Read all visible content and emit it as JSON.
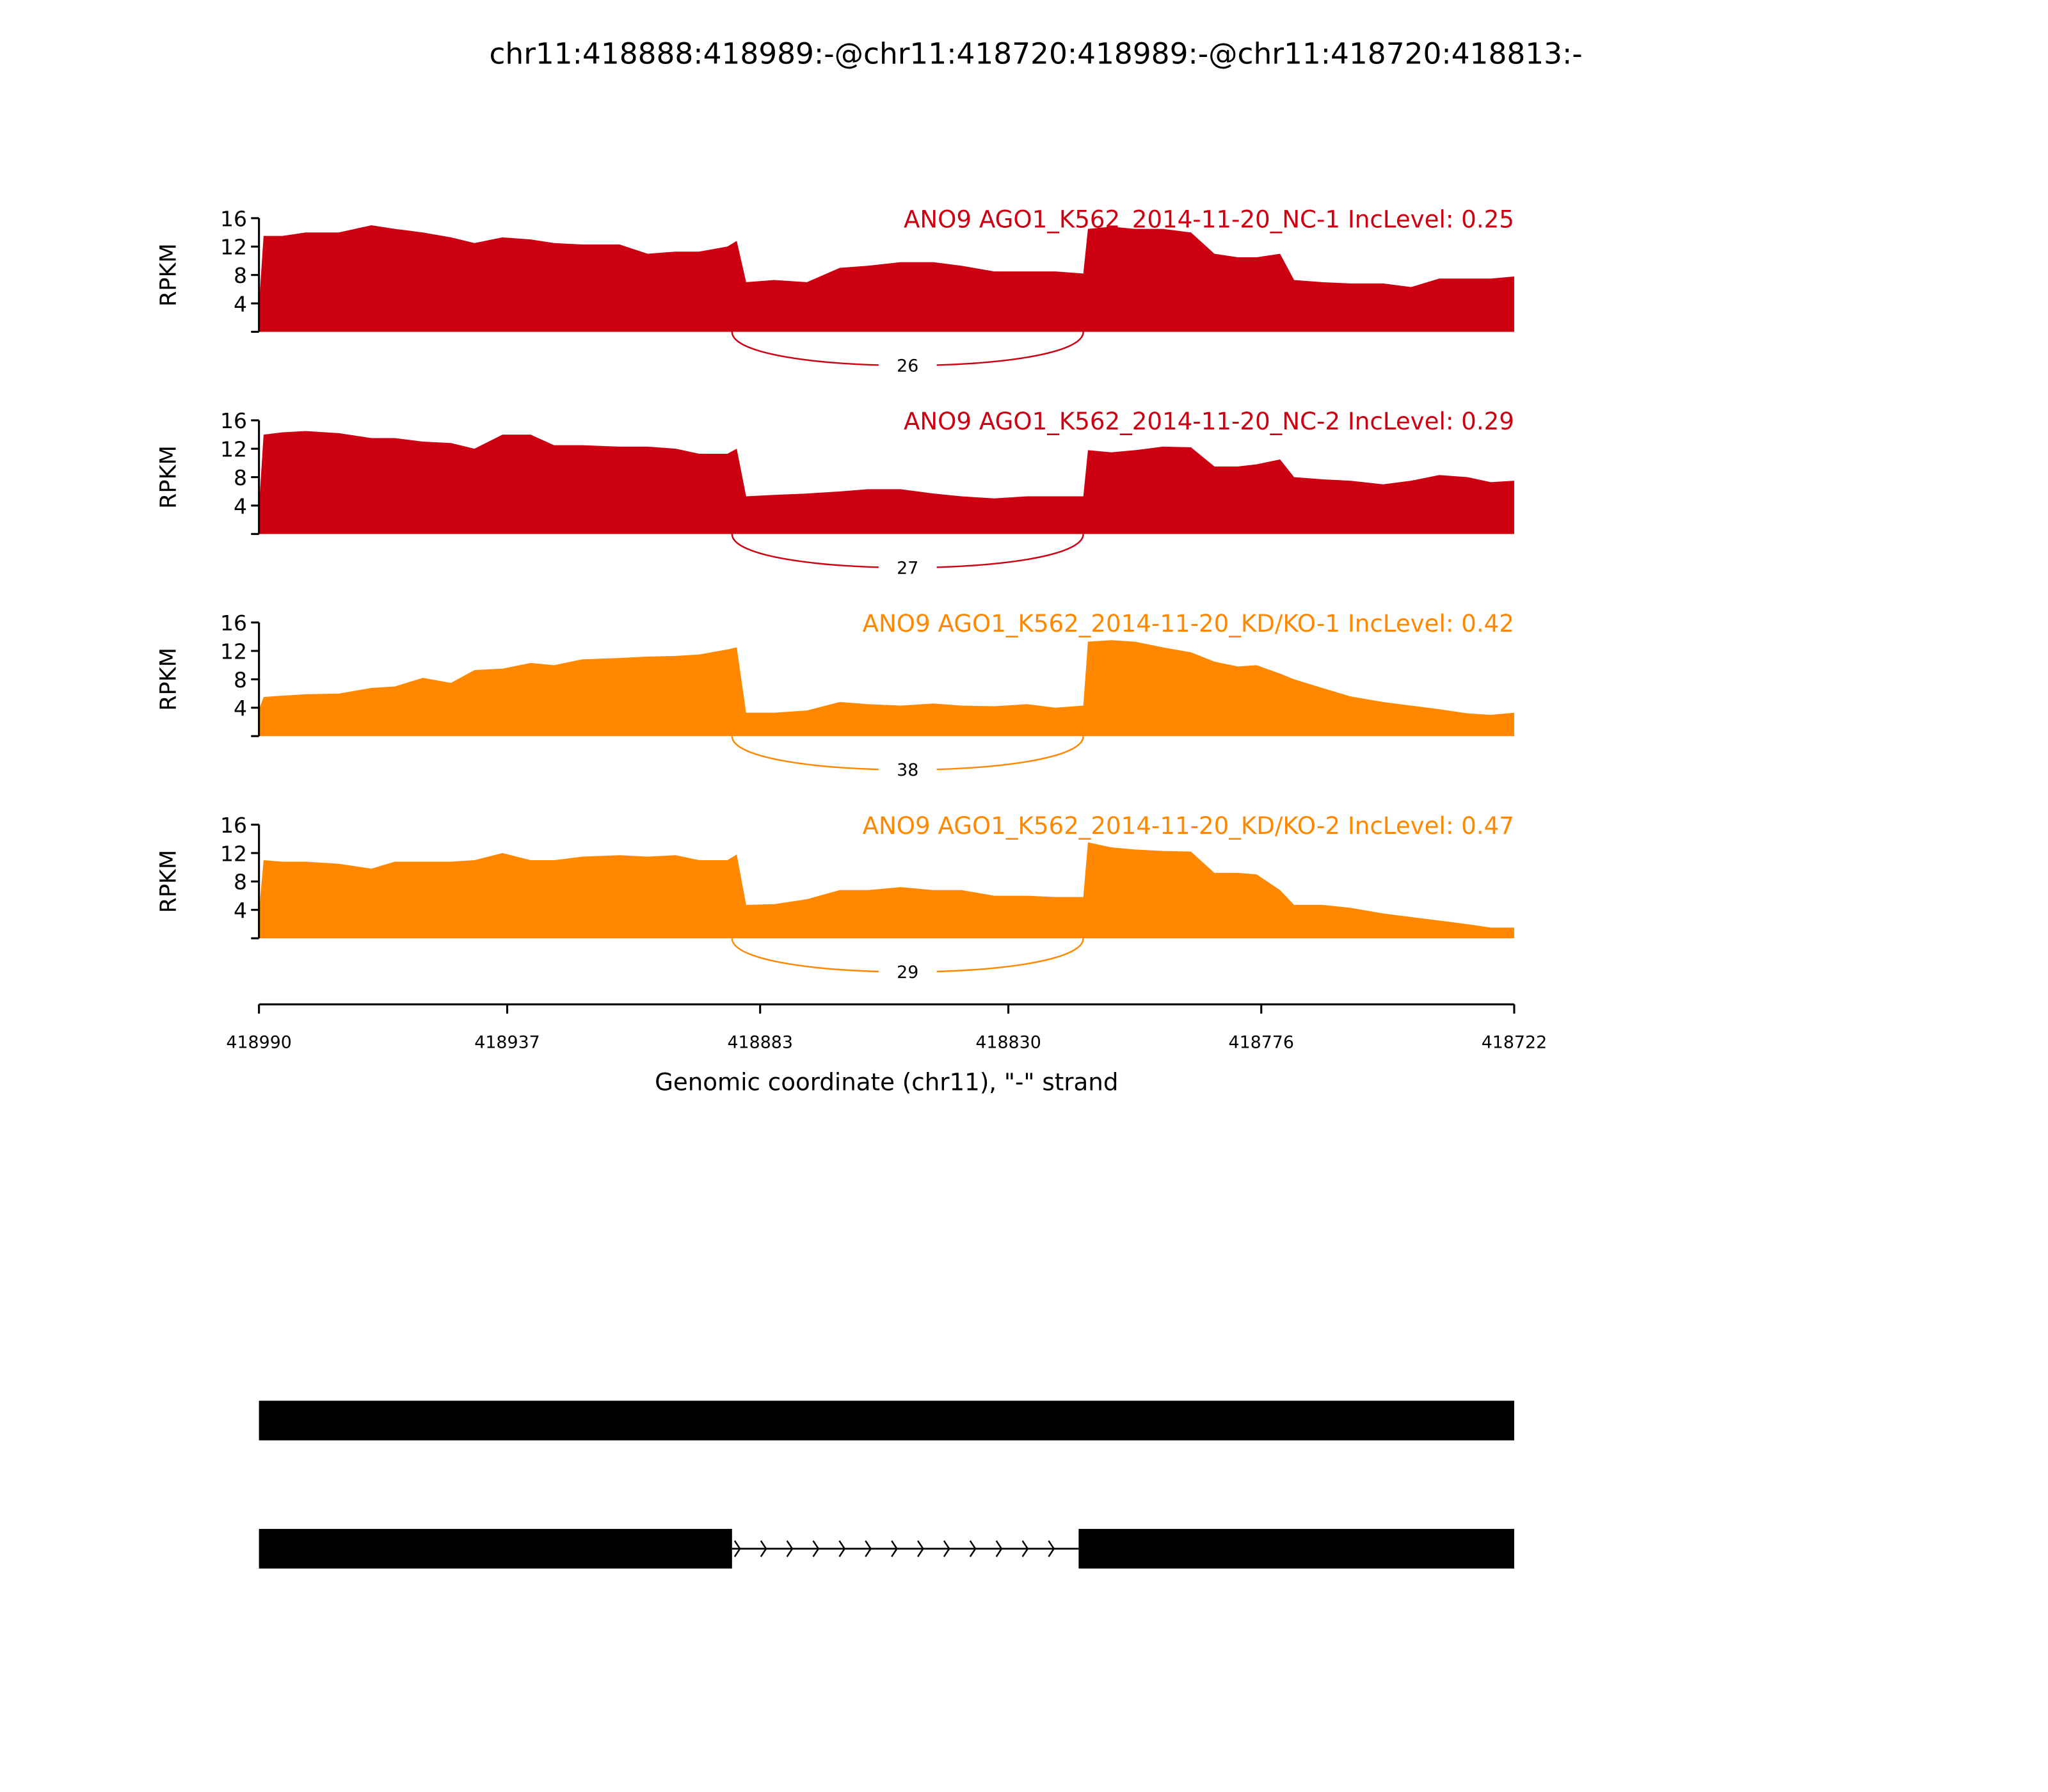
{
  "chart_data": {
    "type": "area",
    "title": "chr11:418888:418989:-@chr11:418720:418989:-@chr11:418720:418813:-",
    "xlabel": "Genomic coordinate (chr11), \"-\" strand",
    "ylabel": "RPKM",
    "xlim": [
      418990,
      418722
    ],
    "ylim": [
      0,
      16
    ],
    "yticks": [
      "4",
      "8",
      "12",
      "16"
    ],
    "xticks": [
      "418990",
      "418937",
      "418883",
      "418830",
      "418776",
      "418722"
    ],
    "x": [
      418989,
      418985,
      418980,
      418973,
      418966,
      418961,
      418955,
      418949,
      418944,
      418938,
      418932,
      418927,
      418921,
      418913,
      418907,
      418901,
      418896,
      418890,
      418888,
      418886,
      418880,
      418873,
      418866,
      418860,
      418853,
      418846,
      418840,
      418833,
      418826,
      418820,
      418814,
      418813,
      418808,
      418803,
      418797,
      418791,
      418786,
      418781,
      418777,
      418772,
      418769,
      418763,
      418757,
      418750,
      418744,
      418738,
      418732,
      418727,
      418722
    ],
    "series": [
      {
        "name": "ANO9 AGO1_K562_2014-11-20_NC-1 IncLevel: 0.25",
        "color": "#cc0011",
        "junction_count": "26",
        "values": [
          13.5,
          13.5,
          14,
          14,
          15,
          14.5,
          14,
          13.3,
          12.5,
          13.3,
          13,
          12.5,
          12.3,
          12.3,
          11,
          11.3,
          11.3,
          12,
          12.8,
          7,
          7.3,
          7,
          9,
          9.3,
          9.8,
          9.8,
          9.3,
          8.5,
          8.5,
          8.5,
          8.2,
          14.5,
          14.8,
          14.5,
          14.5,
          14,
          11,
          10.5,
          10.5,
          11,
          7.3,
          7,
          6.8,
          6.8,
          6.3,
          7.5,
          7.5,
          7.5,
          7.8
        ]
      },
      {
        "name": "ANO9 AGO1_K562_2014-11-20_NC-2 IncLevel: 0.29",
        "color": "#cc0011",
        "junction_count": "27",
        "values": [
          14,
          14.3,
          14.5,
          14.2,
          13.5,
          13.5,
          13,
          12.8,
          12,
          14,
          14,
          12.5,
          12.5,
          12.3,
          12.3,
          12,
          11.3,
          11.3,
          12,
          5.3,
          5.5,
          5.7,
          6,
          6.3,
          6.3,
          5.7,
          5.3,
          5,
          5.3,
          5.3,
          5.3,
          11.8,
          11.5,
          11.8,
          12.3,
          12.2,
          9.5,
          9.5,
          9.8,
          10.5,
          8,
          7.7,
          7.5,
          7,
          7.5,
          8.3,
          8,
          7.3,
          7.5
        ]
      },
      {
        "name": "ANO9 AGO1_K562_2014-11-20_KD/KO-1 IncLevel: 0.42",
        "color": "#ff8800",
        "junction_count": "38",
        "values": [
          5.5,
          5.7,
          5.9,
          6,
          6.8,
          7,
          8.2,
          7.5,
          9.3,
          9.5,
          10.3,
          10,
          10.8,
          11,
          11.2,
          11.3,
          11.5,
          12.2,
          12.5,
          3.3,
          3.3,
          3.6,
          4.8,
          4.5,
          4.3,
          4.6,
          4.3,
          4.2,
          4.5,
          4,
          4.3,
          13.3,
          13.5,
          13.3,
          12.5,
          11.8,
          10.5,
          9.8,
          10,
          8.8,
          8,
          6.8,
          5.6,
          4.8,
          4.3,
          3.8,
          3.2,
          3,
          3.3
        ]
      },
      {
        "name": "ANO9 AGO1_K562_2014-11-20_KD/KO-2 IncLevel: 0.47",
        "color": "#ff8800",
        "junction_count": "29",
        "values": [
          11,
          10.8,
          10.8,
          10.5,
          9.8,
          10.8,
          10.8,
          10.8,
          11,
          12,
          11,
          11,
          11.5,
          11.7,
          11.5,
          11.7,
          11,
          11,
          11.8,
          4.7,
          4.8,
          5.5,
          6.8,
          6.8,
          7.2,
          6.8,
          6.8,
          6,
          6,
          5.8,
          5.8,
          13.5,
          12.8,
          12.5,
          12.3,
          12.2,
          9.2,
          9.2,
          9,
          6.8,
          4.7,
          4.7,
          4.3,
          3.5,
          3,
          2.5,
          2,
          1.5,
          1.5
        ]
      }
    ],
    "junction": [
      418889,
      418814
    ],
    "gene_models": [
      {
        "exons": [
          [
            418990,
            418722
          ]
        ]
      },
      {
        "exons": [
          [
            418990,
            418889
          ],
          [
            418815,
            418722
          ]
        ]
      }
    ]
  }
}
